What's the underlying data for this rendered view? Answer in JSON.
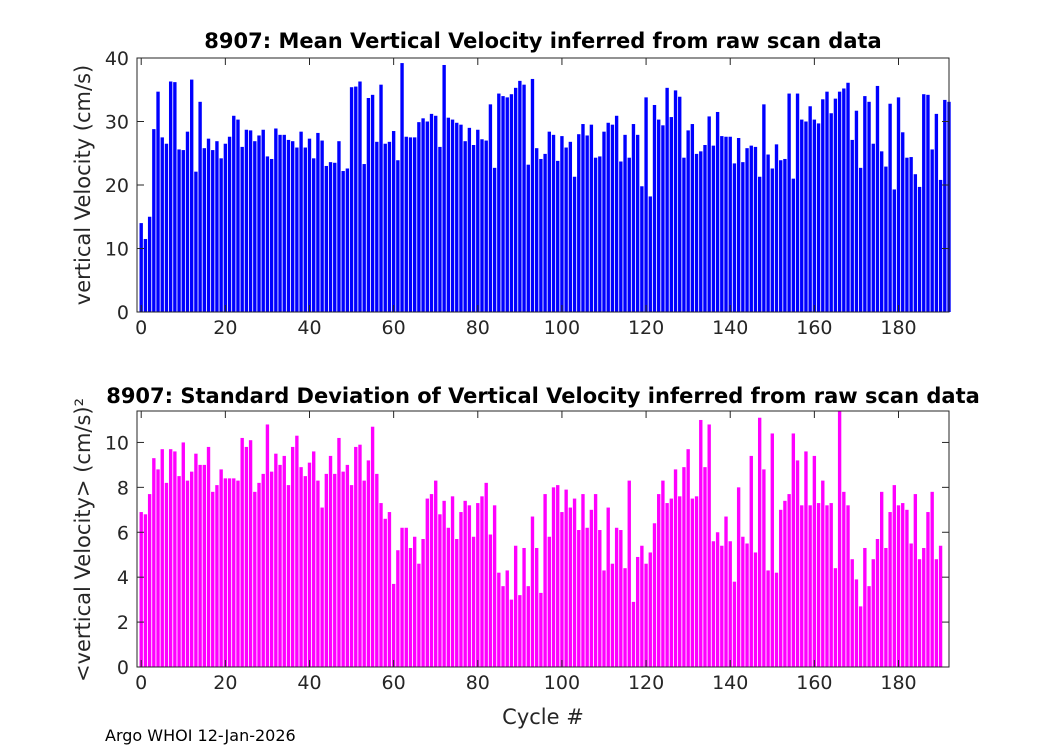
{
  "footer": "Argo WHOI 12-Jan-2026",
  "colors": {
    "top": "#0000ff",
    "bottom": "#ff00ff",
    "axis": "#262626"
  },
  "chart_data": [
    {
      "type": "bar",
      "title": "8907: Mean Vertical Velocity inferred from raw scan data",
      "xlabel": "",
      "ylabel": "vertical Velocity (cm/s)",
      "xlim": [
        -1,
        192
      ],
      "ylim": [
        0,
        40
      ],
      "xticks": [
        0,
        20,
        40,
        60,
        80,
        100,
        120,
        140,
        160,
        180
      ],
      "yticks": [
        0,
        10,
        20,
        30,
        40
      ],
      "x_start": 0,
      "values": [
        14,
        11.5,
        15,
        28.8,
        34.7,
        27.5,
        26.5,
        36.3,
        36.2,
        25.6,
        25.5,
        28.4,
        36.6,
        22.1,
        33.1,
        25.8,
        27.3,
        25.5,
        26.9,
        24.2,
        26.5,
        27.6,
        30.9,
        30.3,
        26,
        28.7,
        28.6,
        26.9,
        27.8,
        28.7,
        24.5,
        24.1,
        28.9,
        27.9,
        27.9,
        27.1,
        26.9,
        25.9,
        28.4,
        25.9,
        27.3,
        24.2,
        28.2,
        27,
        23,
        23.6,
        23.5,
        26.9,
        22.2,
        22.6,
        35.4,
        35.5,
        36.3,
        23.3,
        33.7,
        34.2,
        26.8,
        35.8,
        26.5,
        26.8,
        28.5,
        23.9,
        39.2,
        27.6,
        27.5,
        27.5,
        29.9,
        30.5,
        30,
        31.2,
        30.9,
        26,
        38.9,
        30.6,
        30.3,
        29.8,
        29.5,
        26.9,
        29,
        26.3,
        28.7,
        27.2,
        27,
        32.7,
        22.7,
        34.4,
        34,
        33.8,
        34.3,
        35.3,
        36.4,
        35.8,
        23.2,
        36.7,
        25.8,
        24.1,
        24.9,
        28.4,
        27.9,
        23.8,
        27.7,
        25.9,
        26.8,
        21.3,
        28,
        29.6,
        27.8,
        29.5,
        24.3,
        24.5,
        28.4,
        29.8,
        29.5,
        30.9,
        23.7,
        27.9,
        24.3,
        29.6,
        27.9,
        19.8,
        33.8,
        18.2,
        32.6,
        30.3,
        29.4,
        35.3,
        30.7,
        34.9,
        33.9,
        24.3,
        28.6,
        29.6,
        24.9,
        25.3,
        26.3,
        30.8,
        26.2,
        31.5,
        27.7,
        27.6,
        27.6,
        23.4,
        27.4,
        23.6,
        25.8,
        26.2,
        26,
        21.3,
        32.7,
        24.8,
        22.6,
        26.4,
        23.9,
        24.1,
        34.4,
        21,
        34.4,
        30.3,
        30,
        32.4,
        30.3,
        29.7,
        33.5,
        34.7,
        31.3,
        33.6,
        34.7,
        35.2,
        36.1,
        27.1,
        31.7,
        22.7,
        34,
        33.1,
        26.5,
        35.6,
        25.3,
        22.9,
        32.8,
        19.3,
        33.8,
        28.3,
        24.3,
        24.4,
        21.7,
        19.7,
        34.3,
        34.2,
        25.6,
        31.2,
        20.8,
        33.4,
        33.1
      ]
    },
    {
      "type": "bar",
      "title": "8907: Standard Deviation of Vertical Velocity inferred from raw scan data",
      "xlabel": "Cycle #",
      "ylabel": "<vertical Velocity> (cm/s)²",
      "xlim": [
        -1,
        192
      ],
      "ylim": [
        0,
        11.4
      ],
      "xticks": [
        0,
        20,
        40,
        60,
        80,
        100,
        120,
        140,
        160,
        180
      ],
      "yticks": [
        0,
        2,
        4,
        6,
        8,
        10
      ],
      "x_start": 0,
      "values": [
        6.9,
        6.8,
        7.7,
        9.3,
        8.8,
        9.7,
        8.2,
        9.7,
        9.6,
        8.5,
        10,
        8.3,
        8.7,
        9.5,
        9,
        9,
        9.8,
        7.8,
        8.1,
        8.8,
        8.4,
        8.4,
        8.4,
        8.3,
        10.2,
        9.8,
        10.1,
        7.8,
        8.2,
        8.6,
        10.8,
        8.7,
        9.5,
        9,
        9.4,
        8.1,
        9.8,
        10.3,
        8.9,
        8.5,
        9.1,
        9.6,
        8.3,
        7.1,
        8.6,
        9.4,
        8.6,
        10.2,
        8.7,
        9,
        8.1,
        9.8,
        9.9,
        8.3,
        9.2,
        10.7,
        8.6,
        7.3,
        6.6,
        6.9,
        3.7,
        5.2,
        6.2,
        6.2,
        5.3,
        5.8,
        4.6,
        5.7,
        7.5,
        7.7,
        8.3,
        6.8,
        7.4,
        6.2,
        7.6,
        5.7,
        6.9,
        7.4,
        7.2,
        5.8,
        7.3,
        7.6,
        8.2,
        5.9,
        7.2,
        4.2,
        3.6,
        4.3,
        3,
        5.4,
        3.2,
        5.3,
        3.6,
        6.7,
        5.3,
        3.3,
        7.7,
        5.8,
        8,
        8.1,
        6.9,
        7.9,
        7.1,
        7.5,
        6.1,
        7.7,
        6.2,
        7,
        7.7,
        6.1,
        4.3,
        7.1,
        4.6,
        6.2,
        6.1,
        4.4,
        8.3,
        2.9,
        4.9,
        5.4,
        4.6,
        5.1,
        6.4,
        7.7,
        8.3,
        7.3,
        7.5,
        8.8,
        7.6,
        8.9,
        9.7,
        7.5,
        7.6,
        11,
        8.9,
        10.8,
        5.6,
        6,
        5.4,
        6.7,
        5.6,
        3.8,
        8,
        5.8,
        5.5,
        9.4,
        5.1,
        11.1,
        8.8,
        4.3,
        10.4,
        4.2,
        7,
        7.4,
        7.7,
        10.4,
        9.2,
        7.2,
        9.6,
        7.2,
        9.4,
        7.3,
        8.3,
        7.2,
        7.3,
        4.4,
        11.4,
        7.8,
        7.2,
        4.8,
        3.9,
        2.7,
        5.3,
        3.6,
        4.8,
        5.7,
        7.8,
        5.3,
        6.9,
        8.1,
        7.2,
        7.3,
        7,
        5.5,
        7.7,
        4.8,
        5.3,
        6.9,
        7.8,
        4.8,
        5.4
      ]
    }
  ]
}
